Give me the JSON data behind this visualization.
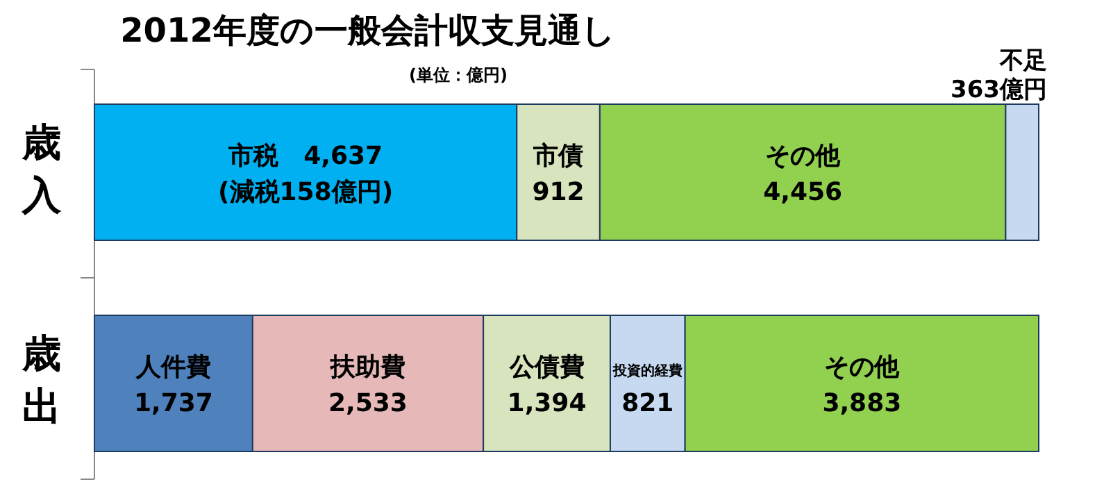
{
  "chart_data": {
    "type": "bar",
    "orientation": "horizontal",
    "stacked": true,
    "title": "2012年度の一般会計収支見通し",
    "subtitle": "(単位：億円)",
    "categories": [
      "歳入",
      "歳出"
    ],
    "series": [
      {
        "name": "市税",
        "color": "#00b0f0",
        "values": [
          4637,
          null
        ],
        "value_labels": [
          "4,637",
          null
        ]
      },
      {
        "name": "市債",
        "color": "#d7e4bd",
        "values": [
          912,
          null
        ],
        "value_labels": [
          "912",
          null
        ]
      },
      {
        "name": "その他",
        "color": "#92d050",
        "values": [
          4456,
          null
        ],
        "value_labels": [
          "4,456",
          null
        ]
      },
      {
        "name": "不足",
        "color": "#c6d9f1",
        "values": [
          363,
          null
        ],
        "value_labels": [
          "363億円",
          null
        ]
      },
      {
        "name": "人件費",
        "color": "#4f81bd",
        "values": [
          null,
          1737
        ],
        "value_labels": [
          null,
          "1,737"
        ]
      },
      {
        "name": "扶助費",
        "color": "#e6b9b8",
        "values": [
          null,
          2533
        ],
        "value_labels": [
          null,
          "2,533"
        ]
      },
      {
        "name": "公債費",
        "color": "#d7e4bd",
        "values": [
          null,
          1394
        ],
        "value_labels": [
          null,
          "1,394"
        ]
      },
      {
        "name": "投資的経費",
        "color": "#c6d9f1",
        "values": [
          null,
          821
        ],
        "value_labels": [
          null,
          "821"
        ]
      },
      {
        "name": "その他",
        "color": "#92d050",
        "values": [
          null,
          3883
        ],
        "value_labels": [
          null,
          "3,883"
        ]
      }
    ],
    "annotations": [
      "(減税158億円)"
    ]
  }
}
